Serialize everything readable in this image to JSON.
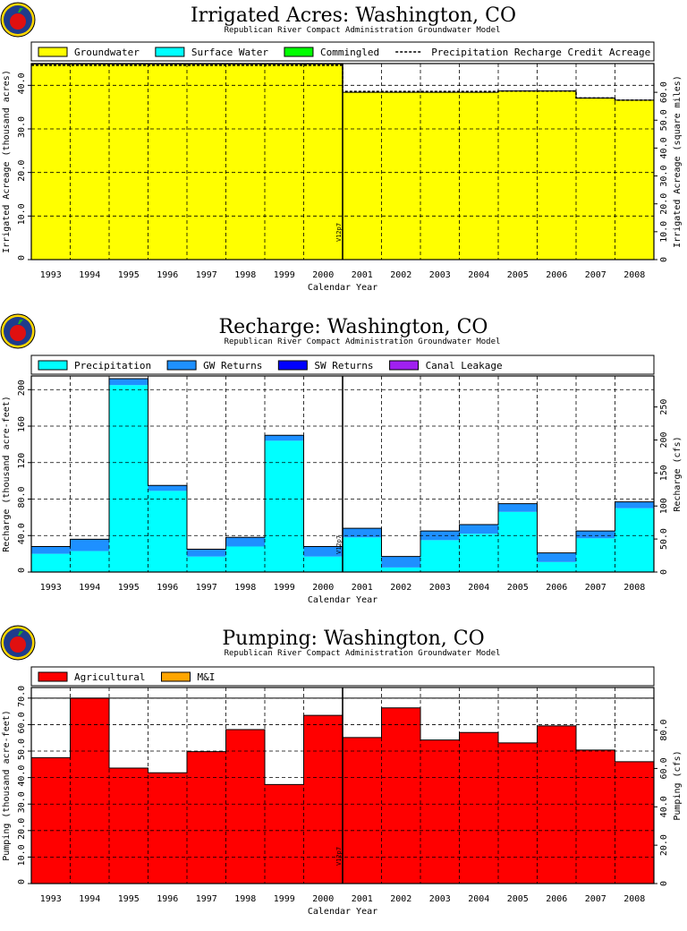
{
  "logo_name": "apple-logo",
  "colors": {
    "groundwater": "#ffff00",
    "surface_water": "#00ffff",
    "commingled": "#00ff00",
    "precipitation": "#00ffff",
    "gw_returns": "#1e90ff",
    "sw_returns": "#0000ff",
    "canal_leakage": "#a020f0",
    "agricultural": "#ff0000",
    "mi": "#ffa500"
  },
  "chart_data": [
    {
      "type": "area",
      "title": "Irrigated Acres: Washington, CO",
      "subtitle": "Republican River Compact Administration Groundwater Model",
      "xlabel": "Calendar Year",
      "ylabel": "Irrigated Acreage (thousand acres)",
      "ylabel_right": "Irrigated Acreage (square miles)",
      "categories": [
        "1993",
        "1994",
        "1995",
        "1996",
        "1997",
        "1998",
        "1999",
        "2000",
        "2001",
        "2002",
        "2003",
        "2004",
        "2005",
        "2006",
        "2007",
        "2008"
      ],
      "ylim": [
        0,
        45
      ],
      "yticks": [
        "0",
        "10.0",
        "20.0",
        "30.0",
        "40.0"
      ],
      "yticks_right": [
        "0",
        "10.0",
        "20.0",
        "30.0",
        "40.0",
        "50.0",
        "60.0"
      ],
      "right_scale": 1.5625,
      "legend": [
        "Groundwater",
        "Surface Water",
        "Commingled",
        "Precipitation Recharge Credit Acreage"
      ],
      "series": [
        {
          "name": "Groundwater",
          "values": [
            44.9,
            44.9,
            44.9,
            44.9,
            44.9,
            44.9,
            44.9,
            44.9,
            38.4,
            38.4,
            38.4,
            38.4,
            38.7,
            38.7,
            37.1,
            36.6
          ]
        },
        {
          "name": "Surface Water",
          "values": [
            0,
            0,
            0,
            0,
            0,
            0,
            0,
            0,
            0,
            0,
            0,
            0,
            0,
            0,
            0,
            0
          ]
        },
        {
          "name": "Commingled",
          "values": [
            0,
            0,
            0,
            0,
            0,
            0,
            0,
            0,
            0,
            0,
            0,
            0,
            0,
            0,
            0,
            0
          ]
        }
      ],
      "line_series": {
        "name": "Precipitation Recharge Credit Acreage",
        "values": [
          44.6,
          44.6,
          44.6,
          44.6,
          44.6,
          44.6,
          44.6,
          44.6,
          38.6,
          38.6,
          38.6,
          38.6,
          38.7,
          38.7,
          37.1,
          36.6
        ]
      },
      "marker": {
        "label": "V12p7",
        "after_category": "2000"
      },
      "grid": true
    },
    {
      "type": "area",
      "title": "Recharge: Washington, CO",
      "subtitle": "Republican River Compact Administration Groundwater Model",
      "xlabel": "Calendar Year",
      "ylabel": "Recharge (thousand acre-feet)",
      "ylabel_right": "Recharge (cfs)",
      "categories": [
        "1993",
        "1994",
        "1995",
        "1996",
        "1997",
        "1998",
        "1999",
        "2000",
        "2001",
        "2002",
        "2003",
        "2004",
        "2005",
        "2006",
        "2007",
        "2008"
      ],
      "ylim": [
        0,
        215
      ],
      "yticks": [
        "0",
        "40.0",
        "80.0",
        "120",
        "160",
        "200"
      ],
      "yticks_right": [
        "0",
        "50.0",
        "100",
        "150",
        "200",
        "250"
      ],
      "right_scale": 1.381,
      "legend": [
        "Precipitation",
        "GW Returns",
        "SW Returns",
        "Canal Leakage"
      ],
      "series": [
        {
          "name": "Precipitation",
          "values": [
            20,
            23,
            205,
            89,
            17,
            28,
            144,
            17,
            38,
            5,
            35,
            42,
            66,
            11,
            37,
            70
          ]
        },
        {
          "name": "GW Returns",
          "values": [
            8,
            13,
            7,
            6,
            8,
            10,
            6,
            11,
            10,
            12,
            10,
            10,
            9,
            10,
            8,
            7
          ]
        },
        {
          "name": "SW Returns",
          "values": [
            0,
            0,
            0,
            0,
            0,
            0,
            0,
            0,
            0,
            0,
            0,
            0,
            0,
            0,
            0,
            0
          ]
        },
        {
          "name": "Canal Leakage",
          "values": [
            0,
            0,
            0,
            0,
            0,
            0,
            0,
            0,
            0,
            0,
            0,
            0,
            0,
            0,
            0,
            0
          ]
        }
      ],
      "marker": {
        "label": "V12p7",
        "after_category": "2000"
      },
      "grid": true
    },
    {
      "type": "area",
      "title": "Pumping: Washington, CO",
      "subtitle": "Republican River Compact Administration Groundwater Model",
      "xlabel": "Calendar Year",
      "ylabel": "Pumping (thousand acre-feet)",
      "ylabel_right": "Pumping (cfs)",
      "categories": [
        "1993",
        "1994",
        "1995",
        "1996",
        "1997",
        "1998",
        "1999",
        "2000",
        "2001",
        "2002",
        "2003",
        "2004",
        "2005",
        "2006",
        "2007",
        "2008"
      ],
      "ylim": [
        0,
        74
      ],
      "yticks": [
        "0",
        "10.0",
        "20.0",
        "30.0",
        "40.0",
        "50.0",
        "60.0",
        "70.0"
      ],
      "yticks_right": [
        "0",
        "20.0",
        "40.0",
        "60.0",
        "80.0"
      ],
      "right_scale": 1.381,
      "legend": [
        "Agricultural",
        "M&I"
      ],
      "series": [
        {
          "name": "Agricultural",
          "values": [
            47.5,
            70.0,
            43.6,
            41.8,
            49.8,
            58.1,
            37.4,
            63.5,
            55.1,
            66.3,
            54.2,
            57.0,
            53.1,
            59.5,
            50.4,
            46.0
          ]
        },
        {
          "name": "M&I",
          "values": [
            0,
            0,
            0,
            0,
            0,
            0,
            0,
            0,
            0,
            0,
            0,
            0,
            0,
            0,
            0,
            0
          ]
        }
      ],
      "ref_line": 70,
      "marker": {
        "label": "V12p7",
        "after_category": "2000"
      },
      "grid": true
    }
  ]
}
